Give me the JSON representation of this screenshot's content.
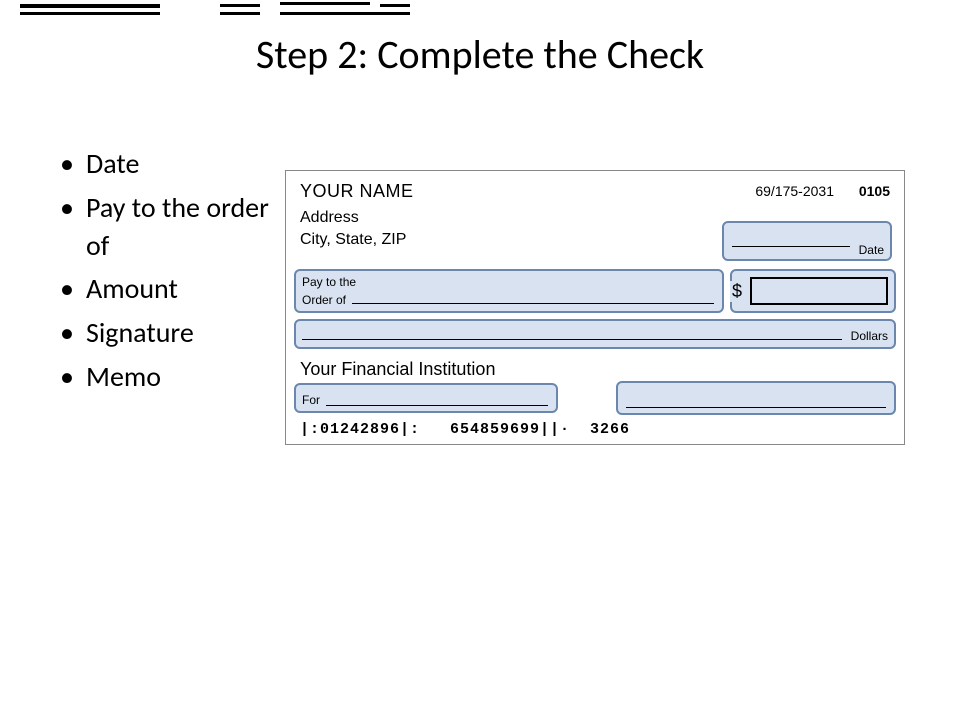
{
  "title": "Step 2: Complete the Check",
  "bullets": [
    "Date",
    "Pay to the order of",
    "Amount",
    "Signature",
    "Memo"
  ],
  "check": {
    "your_name": "YOUR NAME",
    "address": "Address",
    "city_state_zip": "City, State, ZIP",
    "route_code": "69/175-2031",
    "check_number": "0105",
    "date_label": "Date",
    "payto_line1": "Pay to the",
    "payto_line2": "Order of",
    "dollar_sign": "$",
    "dollars_label": "Dollars",
    "bank_name": "Your Financial Institution",
    "for_label": "For",
    "micr": "|:01242896|:   654859699||·  3266"
  },
  "colors": {
    "highlight_fill": "#d8e2f0",
    "highlight_border": "#6b87ad",
    "text": "#000000",
    "bg": "#ffffff",
    "check_border": "#888888"
  }
}
